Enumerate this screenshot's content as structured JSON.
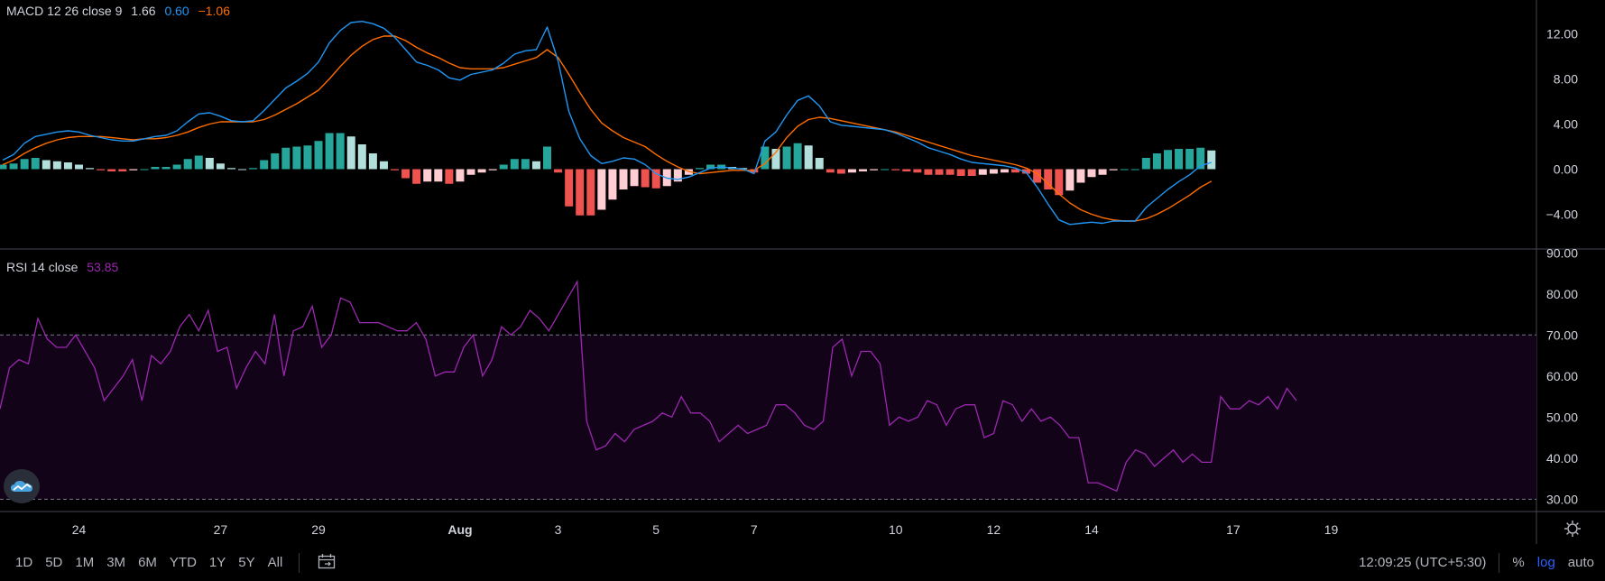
{
  "macd_legend": {
    "name": "MACD 12 26 close 9",
    "hist_value": "1.66",
    "macd_value": "0.60",
    "signal_value": "−1.06"
  },
  "rsi_legend": {
    "name": "RSI 14 close",
    "value": "53.85"
  },
  "colors": {
    "macd_line": "#2196f3",
    "signal_line": "#ff6d00",
    "hist_pos_strong": "#26a69a",
    "hist_pos_weak": "#b2dfdb",
    "hist_neg_strong": "#ef5350",
    "hist_neg_weak": "#ffcdd2",
    "rsi_line": "#9c27b0",
    "rsi_band": "#120318"
  },
  "chart_data": [
    {
      "type": "line",
      "title": "MACD 12 26 close 9",
      "y_ticks": [
        "12.00",
        "8.00",
        "4.00",
        "0.00",
        "−4.00"
      ],
      "ylim": [
        -7,
        15
      ],
      "series": [
        {
          "name": "MACD",
          "values": [
            0.8,
            1.3,
            2.3,
            2.9,
            3.1,
            3.3,
            3.4,
            3.3,
            3.0,
            2.8,
            2.6,
            2.5,
            2.5,
            2.7,
            2.9,
            3.0,
            3.4,
            4.2,
            4.9,
            5.0,
            4.7,
            4.3,
            4.2,
            4.3,
            5.2,
            6.2,
            7.2,
            7.8,
            8.5,
            9.5,
            11.2,
            12.3,
            13.0,
            13.1,
            12.9,
            12.5,
            11.7,
            10.6,
            9.5,
            9.2,
            8.8,
            8.1,
            7.9,
            8.4,
            8.6,
            8.8,
            9.4,
            10.2,
            10.5,
            10.6,
            12.6,
            9.6,
            5.1,
            2.7,
            1.2,
            0.5,
            0.7,
            1.0,
            0.9,
            0.4,
            -0.4,
            -0.8,
            -0.9,
            -0.7,
            -0.3,
            0.1,
            0.2,
            0.1,
            0.0,
            -0.4,
            2.5,
            3.3,
            4.8,
            6.1,
            6.5,
            5.6,
            4.2,
            3.9,
            3.8,
            3.7,
            3.6,
            3.5,
            3.2,
            2.8,
            2.4,
            1.9,
            1.6,
            1.3,
            0.9,
            0.6,
            0.5,
            0.4,
            0.3,
            0.1,
            -0.3,
            -1.6,
            -3.1,
            -4.5,
            -4.9,
            -4.8,
            -4.7,
            -4.8,
            -4.6,
            -4.6,
            -4.6,
            -3.4,
            -2.6,
            -1.8,
            -1.1,
            -0.5,
            0.3,
            0.6
          ]
        },
        {
          "name": "Signal",
          "values": [
            0.4,
            0.8,
            1.4,
            1.9,
            2.3,
            2.6,
            2.8,
            2.9,
            2.9,
            2.9,
            2.8,
            2.7,
            2.6,
            2.7,
            2.7,
            2.8,
            3.0,
            3.3,
            3.7,
            4.0,
            4.2,
            4.2,
            4.2,
            4.2,
            4.4,
            4.8,
            5.3,
            5.8,
            6.4,
            7.0,
            8.0,
            9.1,
            10.1,
            10.9,
            11.5,
            11.8,
            11.8,
            11.4,
            10.8,
            10.3,
            9.9,
            9.4,
            9.0,
            8.9,
            8.9,
            8.9,
            9.0,
            9.3,
            9.6,
            9.9,
            10.6,
            9.9,
            8.4,
            6.8,
            5.3,
            4.1,
            3.4,
            2.8,
            2.4,
            2.0,
            1.3,
            0.7,
            0.2,
            -0.2,
            -0.4,
            -0.3,
            -0.2,
            -0.1,
            -0.1,
            -0.1,
            0.5,
            1.5,
            2.8,
            3.8,
            4.4,
            4.6,
            4.5,
            4.3,
            4.1,
            3.9,
            3.7,
            3.5,
            3.3,
            3.0,
            2.7,
            2.4,
            2.1,
            1.8,
            1.5,
            1.2,
            1.0,
            0.8,
            0.6,
            0.4,
            0.1,
            -0.4,
            -1.3,
            -2.2,
            -3.0,
            -3.6,
            -4.0,
            -4.3,
            -4.5,
            -4.6,
            -4.6,
            -4.4,
            -4.0,
            -3.5,
            -2.9,
            -2.3,
            -1.6,
            -1.06
          ]
        }
      ]
    },
    {
      "type": "line",
      "title": "RSI 14 close",
      "y_ticks": [
        "90.00",
        "80.00",
        "70.00",
        "60.00",
        "50.00",
        "40.00",
        "30.00"
      ],
      "ylim": [
        27,
        90.5
      ],
      "band": [
        30,
        70
      ],
      "x_ticks": [
        {
          "label": "24",
          "x": 7
        },
        {
          "label": "27",
          "x": 20
        },
        {
          "label": "29",
          "x": 29
        },
        {
          "label": "Aug",
          "x": 42
        },
        {
          "label": "3",
          "x": 51
        },
        {
          "label": "5",
          "x": 60
        },
        {
          "label": "7",
          "x": 69
        },
        {
          "label": "10",
          "x": 82
        },
        {
          "label": "12",
          "x": 91
        },
        {
          "label": "14",
          "x": 100
        },
        {
          "label": "17",
          "x": 113
        },
        {
          "label": "19",
          "x": 122
        }
      ],
      "series": [
        {
          "name": "RSI",
          "values": [
            52,
            62,
            64,
            63,
            74,
            69,
            67,
            67,
            70,
            66,
            62,
            54,
            57,
            60,
            64,
            54,
            65,
            63,
            66,
            72,
            75,
            71,
            76,
            66,
            67,
            57,
            62,
            66,
            63,
            75,
            60,
            71,
            72,
            77,
            67,
            70,
            79,
            78,
            73,
            73,
            73,
            72,
            71,
            71,
            73,
            69,
            60,
            61,
            61,
            67,
            70,
            60,
            64,
            72,
            70,
            72,
            76,
            74,
            71,
            75,
            79,
            83,
            49,
            42,
            43,
            46,
            44,
            47,
            48,
            49,
            51,
            50,
            55,
            51,
            51,
            49,
            44,
            46,
            48,
            46,
            47,
            48,
            53,
            53,
            51,
            48,
            47,
            49,
            67,
            69,
            60,
            66,
            66,
            63,
            48,
            50,
            49,
            50,
            54,
            53,
            48,
            52,
            53,
            53,
            45,
            46,
            54,
            53,
            49,
            52,
            49,
            50,
            48,
            45,
            45,
            34,
            34,
            33,
            32,
            39,
            42,
            41,
            38,
            40,
            42,
            39,
            41,
            39,
            39,
            55,
            52,
            52,
            54,
            53,
            55,
            52,
            57,
            54
          ]
        }
      ]
    }
  ],
  "time_ranges": [
    "1D",
    "5D",
    "1M",
    "3M",
    "6M",
    "YTD",
    "1Y",
    "5Y",
    "All"
  ],
  "status": {
    "time": "12:09:25 (UTC+5:30)",
    "percent": "%",
    "log": "log",
    "auto": "auto"
  }
}
